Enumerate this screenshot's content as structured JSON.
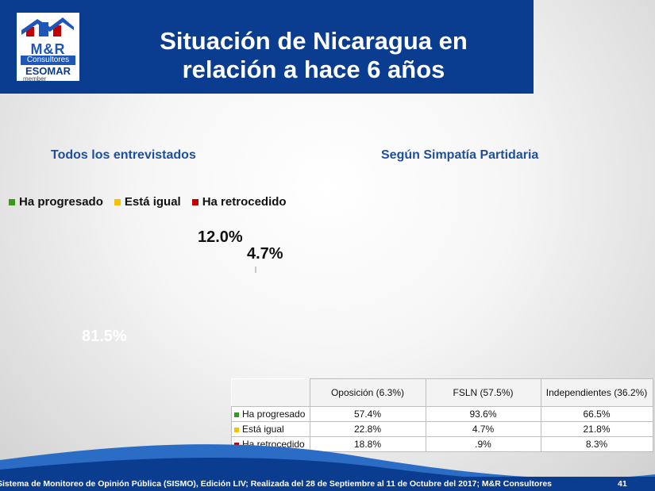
{
  "header": {
    "title_line1": "Situación de Nicaragua en",
    "title_line2": "relación a hace 6 años",
    "logo": {
      "brand": "M&R",
      "sub": "Consultores",
      "esomar": "ESOMAR",
      "member": "member"
    }
  },
  "colors": {
    "header_bg": "#0a3d8f",
    "progresado": "#3a9a1e",
    "igual": "#f3c300",
    "retrocedido": "#c00000"
  },
  "left_title": "Todos los entrevistados",
  "right_title": "Según Simpatía Partidaria",
  "chart_data": {
    "type": "pie",
    "legend": [
      "Ha progresado",
      "Está igual",
      "Ha retrocedido"
    ],
    "values": [
      81.5,
      12.0,
      4.7
    ],
    "labels": [
      "81.5%",
      "12.0%",
      "4.7%"
    ]
  },
  "table": {
    "columns": [
      "Oposición (6.3%)",
      "FSLN (57.5%)",
      "Independientes (36.2%)"
    ],
    "rows": [
      {
        "label": "Ha progresado",
        "values": [
          "57.4%",
          "93.6%",
          "66.5%"
        ]
      },
      {
        "label": "Está igual",
        "values": [
          "22.8%",
          "4.7%",
          "21.8%"
        ]
      },
      {
        "label": "Ha retrocedido",
        "values": [
          "18.8%",
          ".9%",
          "8.3%"
        ]
      }
    ]
  },
  "footer": {
    "text": "Sistema de Monitoreo de Opinión Pública (SISMO), Edición LIV; Realizada del 28 de Septiembre al 11 de Octubre del 2017; M&R Consultores",
    "page": "41"
  }
}
